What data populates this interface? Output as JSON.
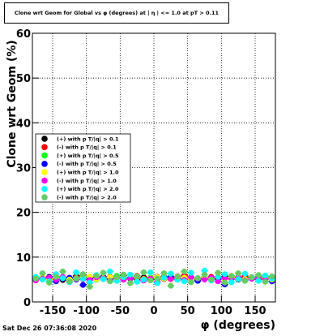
{
  "page": {
    "title": "Clone wrt Geom for Global vs φ (degrees) at | η | <= 1.0 at pT > 0.11",
    "footer": "Sat Dec 26 07:36:08 2020"
  },
  "chart_data": {
    "type": "scatter",
    "title": "Clone wrt Geom for Global vs φ (degrees) at | η | <= 1.0 at pT > 0.11",
    "xlabel": "φ (degrees)",
    "ylabel": "Clone wrt Geom (%)",
    "xlim": [
      -180,
      180
    ],
    "ylim": [
      0,
      60
    ],
    "xticks": [
      -150,
      -100,
      -50,
      0,
      50,
      100,
      150
    ],
    "yticks": [
      0,
      10,
      20,
      30,
      40,
      50,
      60
    ],
    "grid": true,
    "legend_position": "center-left",
    "x": [
      -175,
      -165,
      -155,
      -145,
      -135,
      -125,
      -115,
      -105,
      -95,
      -85,
      -75,
      -65,
      -55,
      -45,
      -35,
      -25,
      -15,
      -5,
      5,
      15,
      25,
      35,
      45,
      55,
      65,
      75,
      85,
      95,
      105,
      115,
      125,
      135,
      145,
      155,
      165,
      175
    ],
    "series": [
      {
        "name": "(+) with p T/|q| > 0.1",
        "color": "#000000",
        "values": [
          5.3,
          5.1,
          5.6,
          5.4,
          4.9,
          5.2,
          5.8,
          5.5,
          5.0,
          5.3,
          5.6,
          5.1,
          5.4,
          5.9,
          5.2,
          5.0,
          5.5,
          5.3,
          5.1,
          5.6,
          5.4,
          5.2,
          5.8,
          5.0,
          5.3,
          5.5,
          5.1,
          5.4,
          5.7,
          5.2,
          5.0,
          5.5,
          5.3,
          5.6,
          5.1,
          5.4
        ]
      },
      {
        "name": "(-) with p T/|q| > 0.1",
        "color": "#ff0000",
        "values": [
          5.0,
          5.4,
          5.2,
          5.7,
          5.3,
          5.0,
          5.5,
          5.9,
          5.2,
          5.4,
          5.1,
          5.6,
          5.3,
          5.0,
          5.5,
          5.8,
          5.2,
          5.4,
          5.6,
          5.1,
          5.3,
          5.7,
          5.9,
          5.2,
          5.0,
          5.4,
          5.6,
          5.3,
          5.1,
          5.5,
          5.2,
          5.8,
          5.4,
          5.0,
          5.3,
          5.6
        ]
      },
      {
        "name": "(+) with p T/|q| > 0.5",
        "color": "#00ff00",
        "values": [
          5.5,
          5.2,
          5.0,
          5.6,
          5.4,
          5.1,
          5.3,
          5.7,
          5.5,
          5.0,
          5.2,
          5.4,
          5.8,
          5.1,
          5.3,
          5.6,
          5.0,
          5.5,
          5.2,
          5.4,
          5.7,
          5.1,
          5.3,
          5.5,
          5.0,
          5.6,
          5.2,
          5.4,
          5.1,
          5.8,
          5.3,
          5.0,
          5.5,
          5.2,
          5.6,
          5.3
        ]
      },
      {
        "name": "(-) with p T/|q| > 0.5",
        "color": "#0000ff",
        "values": [
          5.1,
          5.3,
          5.5,
          4.6,
          5.2,
          5.4,
          5.0,
          3.8,
          5.3,
          5.1,
          5.6,
          5.2,
          5.4,
          5.0,
          5.5,
          5.3,
          4.8,
          5.1,
          5.4,
          5.2,
          5.6,
          5.0,
          5.3,
          5.5,
          4.7,
          5.2,
          5.4,
          5.1,
          3.9,
          5.3,
          5.5,
          5.0,
          5.2,
          5.4,
          5.1,
          4.6
        ]
      },
      {
        "name": "(+) with p T/|q| > 1.0",
        "color": "#ffff00",
        "values": [
          5.4,
          5.6,
          5.1,
          5.3,
          5.5,
          5.0,
          5.2,
          5.4,
          5.6,
          5.1,
          5.3,
          5.5,
          5.0,
          5.2,
          5.7,
          5.4,
          5.1,
          5.3,
          5.5,
          5.2,
          5.0,
          5.6,
          5.4,
          5.1,
          5.3,
          5.5,
          5.2,
          5.7,
          5.0,
          5.4,
          5.6,
          5.1,
          5.3,
          5.5,
          5.2,
          5.0
        ]
      },
      {
        "name": "(-) with p T/|q| > 1.0",
        "color": "#ff00ff",
        "values": [
          4.8,
          5.2,
          5.4,
          5.0,
          5.6,
          4.4,
          5.3,
          5.1,
          4.9,
          5.5,
          5.2,
          4.7,
          5.4,
          5.0,
          5.3,
          5.6,
          4.8,
          5.2,
          4.5,
          5.4,
          5.1,
          5.3,
          4.9,
          5.5,
          5.2,
          5.0,
          5.4,
          4.6,
          5.3,
          5.1,
          5.5,
          4.8,
          5.2,
          5.4,
          5.0,
          5.3
        ]
      },
      {
        "name": "(+) with p T/|q| > 2.0",
        "color": "#00ffff",
        "values": [
          5.6,
          5.0,
          4.6,
          6.2,
          5.3,
          4.4,
          6.6,
          5.2,
          4.3,
          6.0,
          5.1,
          6.8,
          4.7,
          5.5,
          6.1,
          4.5,
          5.0,
          6.6,
          4.2,
          5.4,
          6.3,
          5.0,
          4.6,
          6.5,
          5.3,
          7.0,
          4.8,
          5.6,
          6.2,
          4.4,
          5.1,
          6.3,
          5.5,
          4.7,
          5.9,
          5.2
        ]
      },
      {
        "name": "(-) with p T/|q| > 2.0",
        "color": "#66cc66",
        "values": [
          5.2,
          6.4,
          4.3,
          5.6,
          6.8,
          4.6,
          5.3,
          6.2,
          3.4,
          5.8,
          6.5,
          4.6,
          5.5,
          6.1,
          4.2,
          5.7,
          6.6,
          4.8,
          5.2,
          6.4,
          3.6,
          5.6,
          6.8,
          4.4,
          5.3,
          6.1,
          5.0,
          6.5,
          4.3,
          5.8,
          6.4,
          4.7,
          5.5,
          6.0,
          4.5,
          5.7
        ]
      }
    ]
  }
}
